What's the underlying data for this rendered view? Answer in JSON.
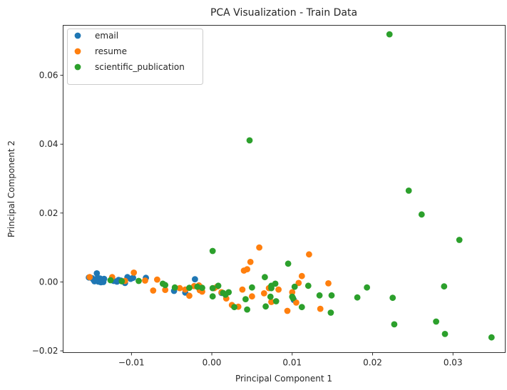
{
  "chart_data": {
    "type": "scatter",
    "title": "PCA Visualization - Train Data",
    "xlabel": "Principal Component 1",
    "ylabel": "Principal Component 2",
    "xlim": [
      -0.0185,
      0.0365
    ],
    "ylim": [
      -0.0205,
      0.0745
    ],
    "xticks": [
      -0.01,
      0.0,
      0.01,
      0.02,
      0.03
    ],
    "xtick_labels": [
      "−0.01",
      "0.00",
      "0.01",
      "0.02",
      "0.03"
    ],
    "yticks": [
      -0.02,
      0.0,
      0.02,
      0.04,
      0.06
    ],
    "ytick_labels": [
      "−0.02",
      "0.00",
      "0.02",
      "0.04",
      "0.06"
    ],
    "grid": false,
    "legend_position": "top-left",
    "series": [
      {
        "name": "email",
        "color": "#1f77b4",
        "points": [
          [
            -0.0153,
            0.0013
          ],
          [
            -0.0149,
            0.0011
          ],
          [
            -0.0147,
            0.0006
          ],
          [
            -0.0146,
            0.0002
          ],
          [
            -0.0144,
            0.0008
          ],
          [
            -0.0143,
            0.0025
          ],
          [
            -0.0142,
            0.0012
          ],
          [
            -0.0141,
            0.0001
          ],
          [
            -0.014,
            0.0006
          ],
          [
            -0.0139,
            0.001
          ],
          [
            -0.0138,
            -0.0001
          ],
          [
            -0.0137,
            0.0004
          ],
          [
            -0.0136,
            0.0002
          ],
          [
            -0.0135,
            0.0
          ],
          [
            -0.0134,
            0.0009
          ],
          [
            -0.0122,
            0.0003
          ],
          [
            -0.0118,
            0.0001
          ],
          [
            -0.0116,
            0.0006
          ],
          [
            -0.0113,
            0.0004
          ],
          [
            -0.0108,
            -0.0003
          ],
          [
            -0.0105,
            0.0014
          ],
          [
            -0.0101,
            0.0009
          ],
          [
            -0.0098,
            0.0012
          ],
          [
            -0.0082,
            0.0012
          ],
          [
            -0.0047,
            -0.0026
          ],
          [
            -0.0033,
            -0.0031
          ],
          [
            -0.0021,
            0.0008
          ],
          [
            0.0012,
            -0.0032
          ],
          [
            0.0102,
            -0.0052
          ]
        ]
      },
      {
        "name": "resume",
        "color": "#ff7f0e",
        "points": [
          [
            -0.0152,
            0.0014
          ],
          [
            -0.0124,
            0.0014
          ],
          [
            -0.0108,
            0.0003
          ],
          [
            -0.0097,
            0.0027
          ],
          [
            -0.0083,
            0.0004
          ],
          [
            -0.0073,
            -0.0025
          ],
          [
            -0.0068,
            0.0007
          ],
          [
            -0.0058,
            -0.0023
          ],
          [
            -0.004,
            -0.0018
          ],
          [
            -0.0033,
            -0.0022
          ],
          [
            -0.0028,
            -0.004
          ],
          [
            -0.0022,
            -0.0012
          ],
          [
            -0.0016,
            -0.001
          ],
          [
            -0.0015,
            -0.0024
          ],
          [
            -0.0014,
            -0.0015
          ],
          [
            -0.0012,
            -0.0028
          ],
          [
            0.0003,
            -0.0018
          ],
          [
            0.0007,
            -0.0013
          ],
          [
            0.0012,
            -0.003
          ],
          [
            0.0018,
            -0.0048
          ],
          [
            0.0025,
            -0.0067
          ],
          [
            0.0033,
            -0.0072
          ],
          [
            0.0038,
            -0.0022
          ],
          [
            0.004,
            0.0033
          ],
          [
            0.0044,
            0.0037
          ],
          [
            0.0048,
            0.0058
          ],
          [
            0.005,
            -0.0042
          ],
          [
            0.0059,
            0.01
          ],
          [
            0.0065,
            -0.0033
          ],
          [
            0.0071,
            -0.0018
          ],
          [
            0.0074,
            -0.0058
          ],
          [
            0.0083,
            -0.0022
          ],
          [
            0.0094,
            -0.0084
          ],
          [
            0.01,
            -0.003
          ],
          [
            0.0105,
            -0.006
          ],
          [
            0.0108,
            -0.0003
          ],
          [
            0.0112,
            0.0017
          ],
          [
            0.0121,
            0.008
          ],
          [
            0.0135,
            -0.0078
          ],
          [
            0.0145,
            -0.0004
          ]
        ]
      },
      {
        "name": "scientific_publication",
        "color": "#2ca02c",
        "points": [
          [
            -0.0126,
            0.0005
          ],
          [
            -0.0112,
            0.0002
          ],
          [
            -0.0091,
            0.0003
          ],
          [
            -0.0061,
            -0.0005
          ],
          [
            -0.0058,
            -0.0009
          ],
          [
            -0.0046,
            -0.0016
          ],
          [
            -0.0028,
            -0.0017
          ],
          [
            -0.0018,
            -0.0014
          ],
          [
            -0.0012,
            -0.0017
          ],
          [
            0.0001,
            -0.0018
          ],
          [
            0.0001,
            -0.0042
          ],
          [
            0.0001,
            0.009
          ],
          [
            0.0008,
            -0.0011
          ],
          [
            0.0014,
            -0.0032
          ],
          [
            0.0017,
            -0.0037
          ],
          [
            0.0021,
            -0.003
          ],
          [
            0.0028,
            -0.0073
          ],
          [
            0.0042,
            -0.005
          ],
          [
            0.0044,
            -0.008
          ],
          [
            0.0047,
            0.0411
          ],
          [
            0.005,
            -0.0016
          ],
          [
            0.0066,
            0.0014
          ],
          [
            0.0067,
            -0.0071
          ],
          [
            0.0073,
            -0.0043
          ],
          [
            0.0074,
            -0.0018
          ],
          [
            0.0074,
            -0.0011
          ],
          [
            0.0079,
            -0.0005
          ],
          [
            0.008,
            -0.0056
          ],
          [
            0.0095,
            0.0053
          ],
          [
            0.01,
            -0.0043
          ],
          [
            0.0101,
            -0.0047
          ],
          [
            0.0103,
            -0.0014
          ],
          [
            0.0112,
            -0.0073
          ],
          [
            0.012,
            -0.0011
          ],
          [
            0.0134,
            -0.0039
          ],
          [
            0.0148,
            -0.0089
          ],
          [
            0.0149,
            -0.0039
          ],
          [
            0.0181,
            -0.0045
          ],
          [
            0.0193,
            -0.0016
          ],
          [
            0.0221,
            0.0719
          ],
          [
            0.0225,
            -0.0046
          ],
          [
            0.0227,
            -0.0123
          ],
          [
            0.0245,
            0.0265
          ],
          [
            0.0261,
            0.0196
          ],
          [
            0.0279,
            -0.0115
          ],
          [
            0.0289,
            -0.0013
          ],
          [
            0.029,
            -0.0151
          ],
          [
            0.0308,
            0.0122
          ],
          [
            0.0348,
            -0.0161
          ]
        ]
      }
    ]
  }
}
